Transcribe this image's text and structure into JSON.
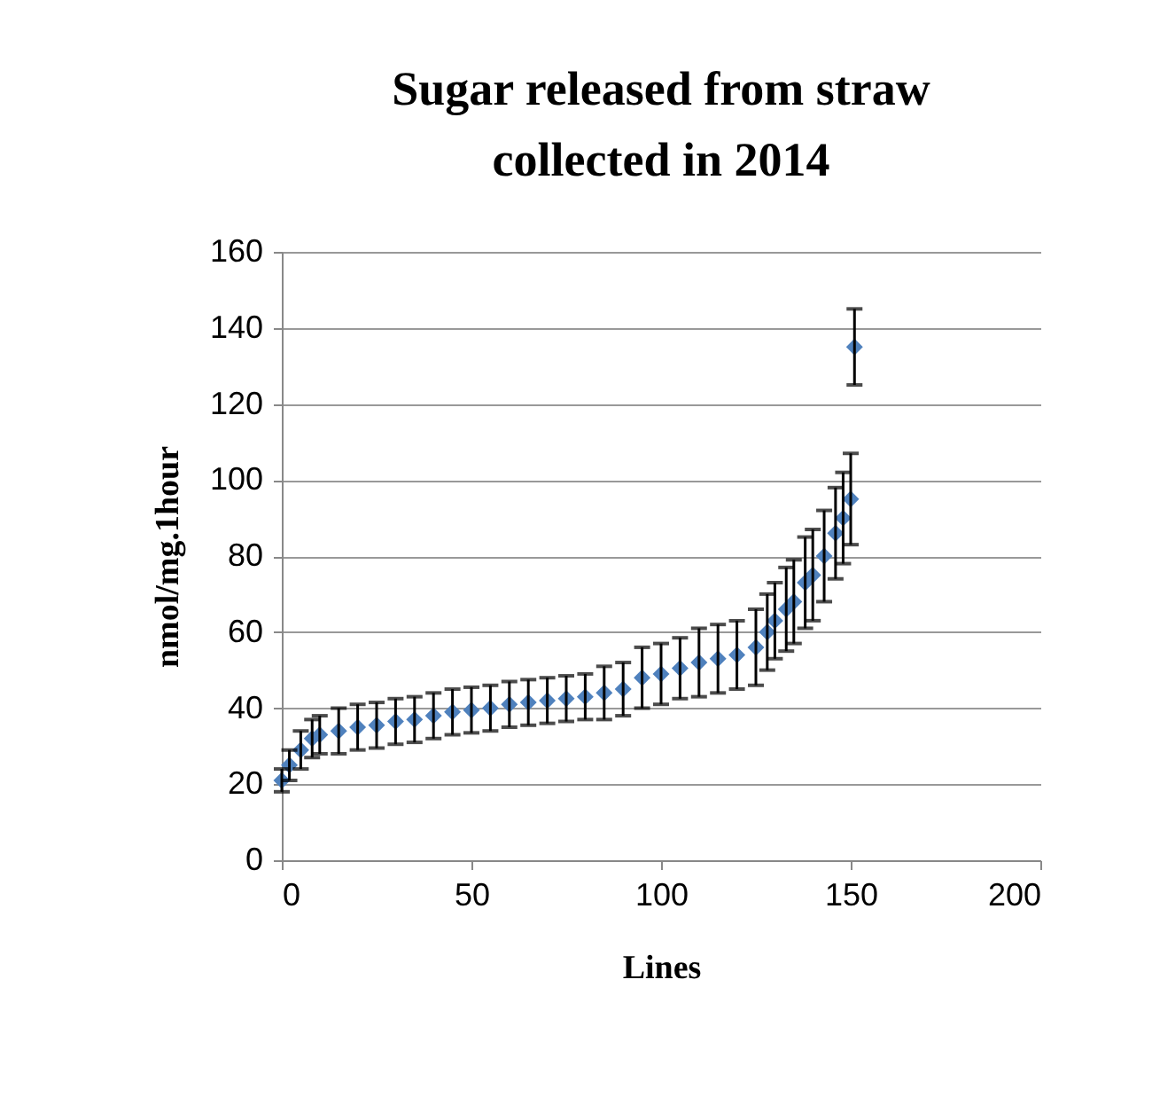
{
  "chart_data": {
    "type": "scatter",
    "title": "Sugar released from straw collected in 2014",
    "xlabel": "Lines",
    "ylabel": "nmol/mg.1hour",
    "x": [
      0,
      2,
      5,
      8,
      10,
      15,
      20,
      25,
      30,
      35,
      40,
      45,
      50,
      55,
      60,
      65,
      70,
      75,
      80,
      85,
      90,
      95,
      100,
      105,
      110,
      115,
      120,
      125,
      128,
      130,
      133,
      135,
      138,
      140,
      143,
      146,
      148,
      150,
      151
    ],
    "series": [
      {
        "color": "#4f81bd",
        "values": [
          21,
          25,
          29,
          32,
          33,
          34,
          35,
          35.5,
          36.5,
          37,
          38,
          39,
          39.5,
          40,
          41,
          41.5,
          42,
          42.5,
          43,
          44,
          45,
          48,
          49,
          50.5,
          52,
          53,
          54,
          56,
          60,
          63,
          66,
          68,
          73,
          75,
          80,
          86,
          90,
          95,
          135
        ],
        "errors": [
          3,
          4,
          5,
          5,
          5,
          6,
          6,
          6,
          6,
          6,
          6,
          6,
          6,
          6,
          6,
          6,
          6,
          6,
          6,
          7,
          7,
          8,
          8,
          8,
          9,
          9,
          9,
          10,
          10,
          10,
          11,
          11,
          12,
          12,
          12,
          12,
          12,
          12,
          10
        ]
      }
    ],
    "xlim": [
      0,
      200
    ],
    "xticks": [
      0,
      50,
      100,
      150,
      200
    ],
    "ylim": [
      0,
      160
    ],
    "yticks": [
      0,
      20,
      40,
      60,
      80,
      100,
      120,
      140,
      160
    ],
    "grid": "y",
    "marker": "diamond"
  }
}
